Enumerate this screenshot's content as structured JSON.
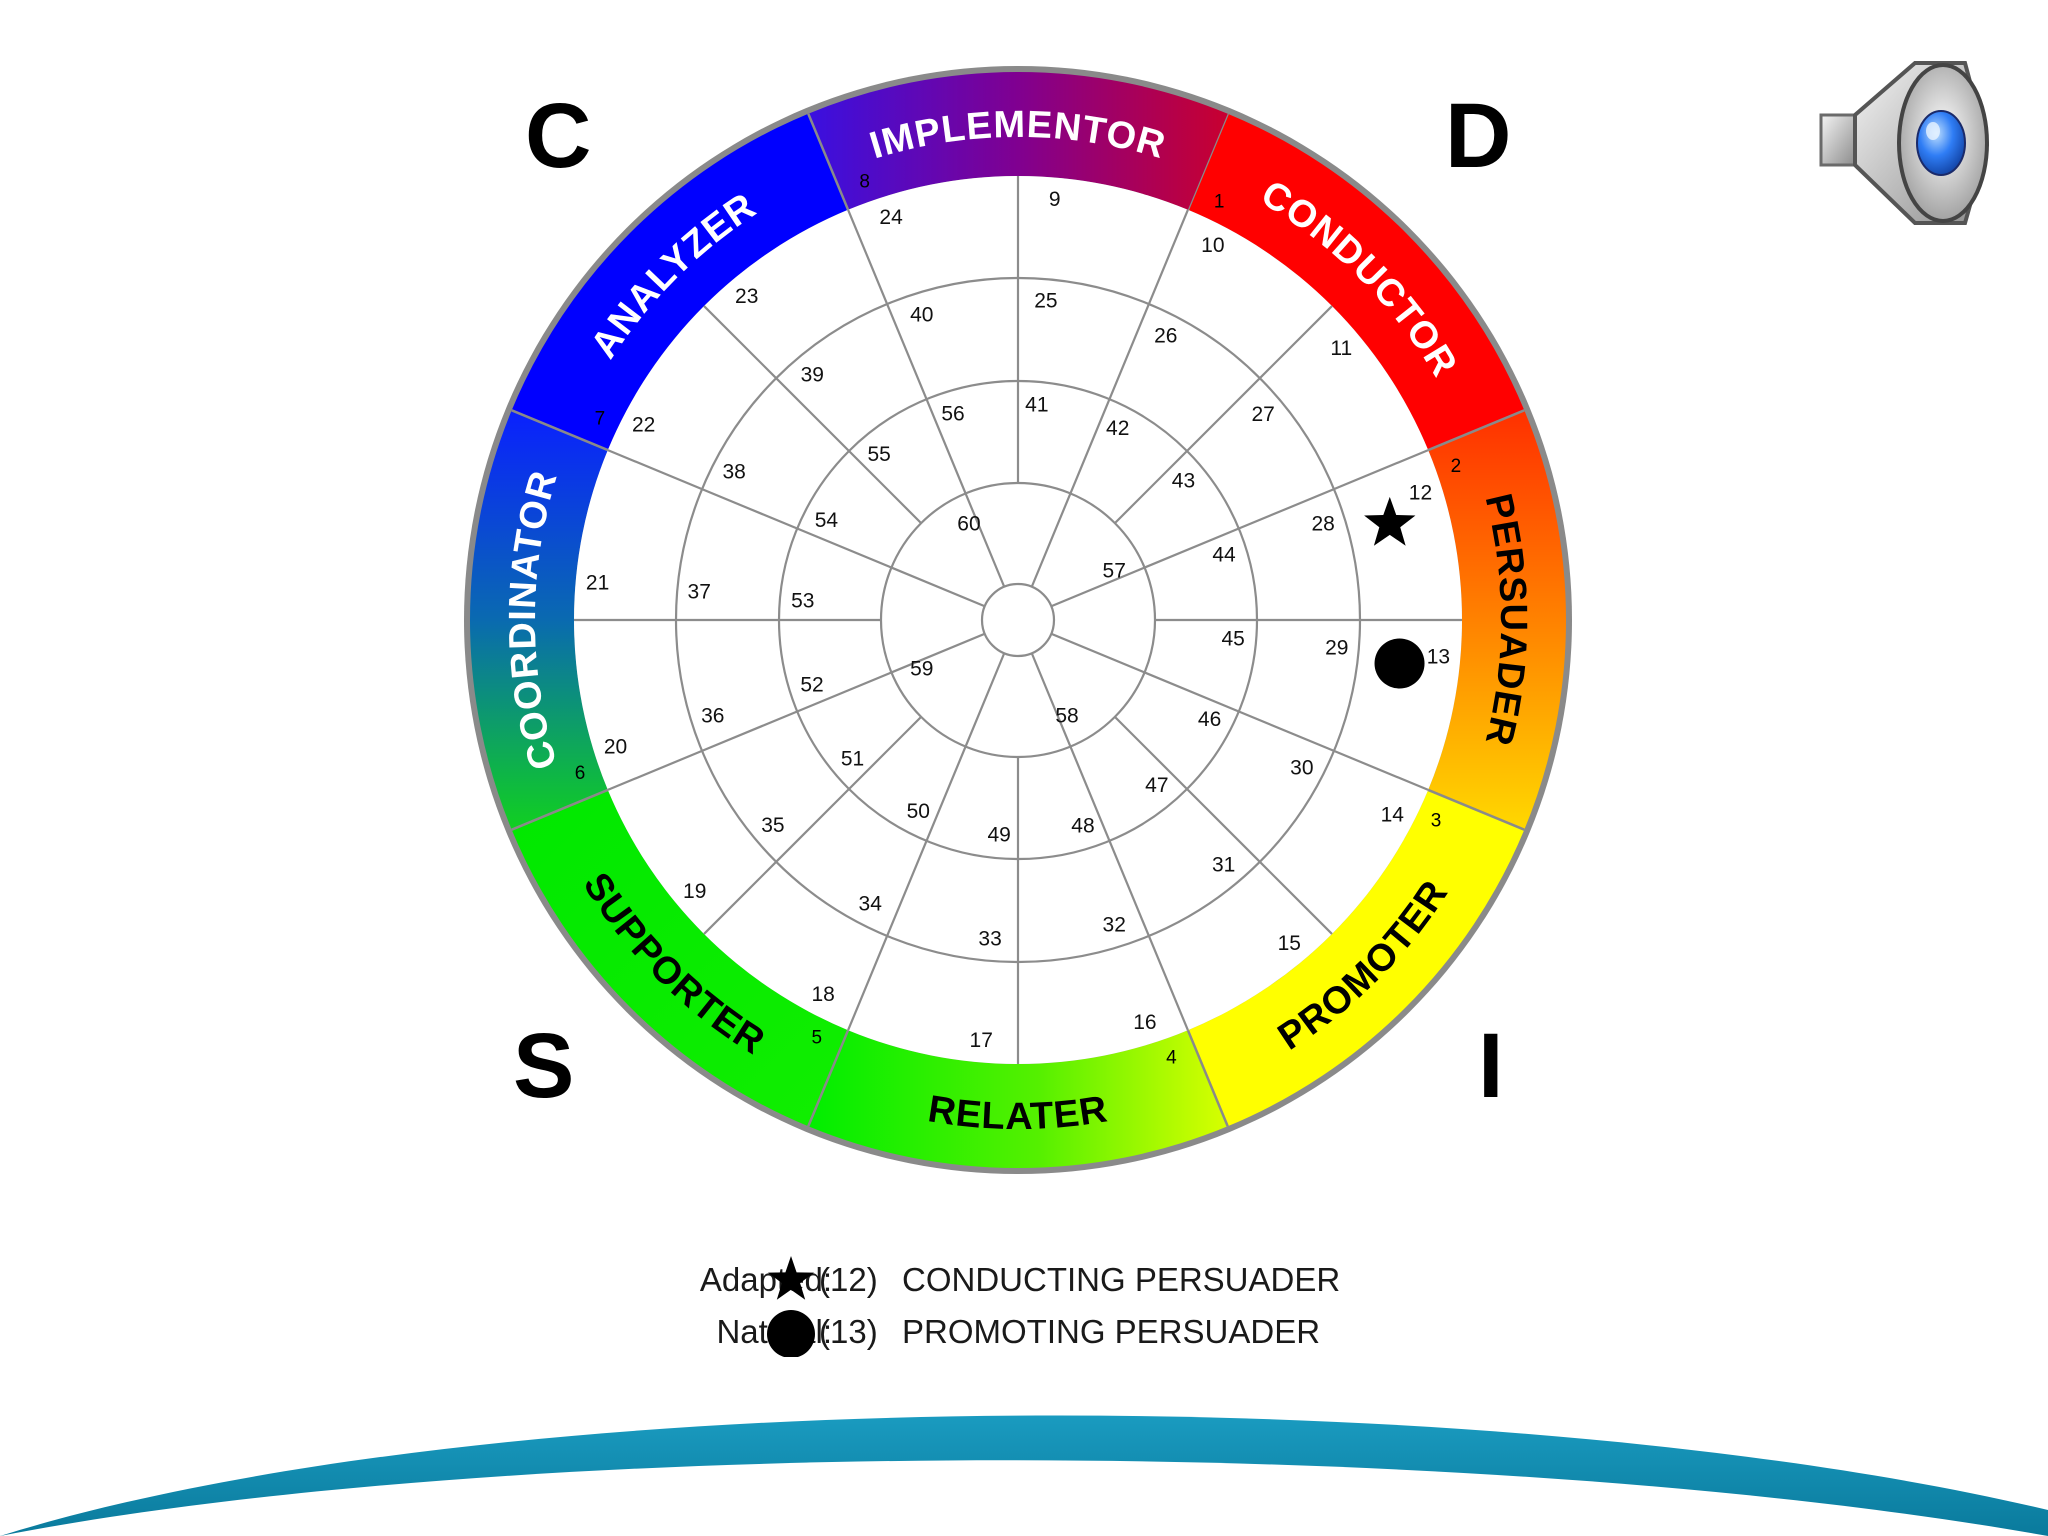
{
  "corners": {
    "c": "C",
    "d": "D",
    "s": "S",
    "i": "I"
  },
  "segments": [
    {
      "id": "conductor",
      "label": "CONDUCTOR",
      "number": "1",
      "text_color": "#ffffff"
    },
    {
      "id": "persuader",
      "label": "PERSUADER",
      "number": "2",
      "text_color": "#000000"
    },
    {
      "id": "promoter",
      "label": "PROMOTER",
      "number": "3",
      "text_color": "#000000"
    },
    {
      "id": "relater",
      "label": "RELATER",
      "number": "4",
      "text_color": "#000000"
    },
    {
      "id": "supporter",
      "label": "SUPPORTER",
      "number": "5",
      "text_color": "#000000"
    },
    {
      "id": "coordinator",
      "label": "COORDINATOR",
      "number": "6",
      "text_color": "#ffffff"
    },
    {
      "id": "analyzer",
      "label": "ANALYZER",
      "number": "7",
      "text_color": "#ffffff"
    },
    {
      "id": "implementor",
      "label": "IMPLEMENTOR",
      "number": "8",
      "text_color": "#ffffff"
    }
  ],
  "rings": [
    [
      "9",
      "10",
      "11",
      "12",
      "13",
      "14",
      "15",
      "16",
      "17",
      "18",
      "19",
      "20",
      "21",
      "22",
      "23",
      "24"
    ],
    [
      "25",
      "26",
      "27",
      "28",
      "29",
      "30",
      "31",
      "32",
      "33",
      "34",
      "35",
      "36",
      "37",
      "38",
      "39",
      "40"
    ],
    [
      "41",
      "42",
      "43",
      "44",
      "45",
      "46",
      "47",
      "48",
      "49",
      "50",
      "51",
      "52",
      "53",
      "54",
      "55",
      "56"
    ],
    [
      "57",
      "58",
      "59",
      "60"
    ]
  ],
  "markers": {
    "adapted": {
      "shape": "star",
      "position": "12"
    },
    "natural": {
      "shape": "circle",
      "position": "13"
    }
  },
  "legend": {
    "adapted": {
      "label": "Adapted:",
      "number": "(12)",
      "description": "CONDUCTING PERSUADER"
    },
    "natural": {
      "label": "Natural:",
      "number": "(13)",
      "description": "PROMOTING PERSUADER"
    }
  },
  "icons": {
    "audio": "speaker-icon"
  },
  "colors": {
    "conductor": "#ff0000",
    "persuader": "#ff8000",
    "promoter": "#ffff00",
    "relater": "#00e000",
    "supporter": "#00dd00",
    "coordinator": "#1030ff",
    "analyzer": "#0000ff",
    "implementor": "#8a0080",
    "rim": "#8a8a8a",
    "swoosh": "#1186ac"
  }
}
